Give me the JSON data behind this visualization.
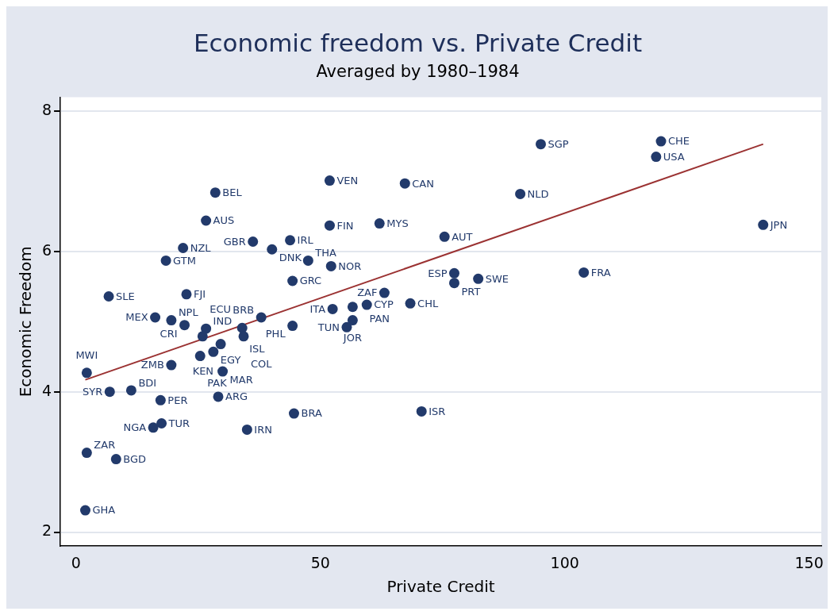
{
  "chart_data": {
    "type": "scatter",
    "title": "Economic freedom vs. Private Credit",
    "subtitle": "Averaged by 1980–1984",
    "xlabel": "Private Credit",
    "ylabel": "Economic Freedom",
    "xlim": [
      -3.2,
      152.5
    ],
    "ylim": [
      1.8,
      8.2
    ],
    "xticks": [
      0,
      50,
      100,
      150
    ],
    "yticks": [
      2,
      4,
      6,
      8
    ],
    "grid": "y",
    "legend": false,
    "marker": "circle",
    "series": [
      {
        "type": "scatter",
        "color": "#223a6b",
        "x": [
          95.1,
          119.7,
          118.7,
          140.6,
          51.9,
          67.3,
          28.5,
          90.9,
          26.6,
          51.9,
          62.1,
          75.4,
          36.2,
          43.8,
          40.1,
          21.9,
          18.4,
          47.5,
          52.2,
          44.3,
          77.4,
          77.4,
          82.3,
          103.9,
          6.7,
          22.6,
          63.1,
          68.4,
          52.5,
          56.6,
          59.5,
          56.6,
          55.4,
          44.3,
          37.9,
          16.2,
          19.5,
          22.2,
          26.6,
          25.9,
          34.0,
          34.3,
          29.6,
          28.1,
          25.4,
          19.5,
          30.0,
          2.2,
          6.9,
          11.3,
          17.3,
          29.1,
          70.7,
          44.6,
          17.5,
          15.8,
          35.0,
          2.2,
          8.2,
          1.9
        ],
        "values": [
          7.53,
          7.57,
          7.35,
          6.38,
          7.01,
          6.97,
          6.84,
          6.82,
          6.44,
          6.37,
          6.4,
          6.21,
          6.14,
          6.16,
          6.03,
          6.05,
          5.87,
          5.87,
          5.79,
          5.58,
          5.69,
          5.55,
          5.61,
          5.7,
          5.36,
          5.39,
          5.41,
          5.26,
          5.18,
          5.21,
          5.24,
          5.02,
          4.92,
          4.94,
          5.06,
          5.06,
          5.02,
          4.95,
          4.9,
          4.79,
          4.91,
          4.79,
          4.68,
          4.57,
          4.51,
          4.38,
          4.29,
          4.27,
          4.0,
          4.02,
          3.88,
          3.93,
          3.72,
          3.69,
          3.55,
          3.49,
          3.46,
          3.13,
          3.04,
          2.31
        ]
      },
      {
        "type": "line",
        "color": "#9b3232",
        "marker": "none",
        "x": [
          1.9,
          140.6
        ],
        "values": [
          4.17,
          7.53
        ]
      }
    ],
    "annotations": [
      {
        "text": "SGP",
        "x": 95.1,
        "y": 7.53
      },
      {
        "text": "CHE",
        "x": 119.7,
        "y": 7.57
      },
      {
        "text": "USA",
        "x": 118.7,
        "y": 7.35
      },
      {
        "text": "JPN",
        "x": 140.6,
        "y": 6.38
      },
      {
        "text": "VEN",
        "x": 51.9,
        "y": 7.01
      },
      {
        "text": "CAN",
        "x": 67.3,
        "y": 6.97
      },
      {
        "text": "BEL",
        "x": 28.5,
        "y": 6.84
      },
      {
        "text": "NLD",
        "x": 90.9,
        "y": 6.82
      },
      {
        "text": "AUS",
        "x": 26.6,
        "y": 6.44
      },
      {
        "text": "FIN",
        "x": 51.9,
        "y": 6.37
      },
      {
        "text": "MYS",
        "x": 62.1,
        "y": 6.4
      },
      {
        "text": "AUT",
        "x": 75.4,
        "y": 6.21
      },
      {
        "text": "GBR",
        "x": 36.2,
        "y": 6.14
      },
      {
        "text": "IRL",
        "x": 43.8,
        "y": 6.16
      },
      {
        "text": "DNK",
        "x": 40.1,
        "y": 6.03
      },
      {
        "text": "NZL",
        "x": 21.9,
        "y": 6.05
      },
      {
        "text": "GTM",
        "x": 18.4,
        "y": 5.87
      },
      {
        "text": "THA",
        "x": 47.5,
        "y": 5.87
      },
      {
        "text": "NOR",
        "x": 52.2,
        "y": 5.79
      },
      {
        "text": "GRC",
        "x": 44.3,
        "y": 5.58
      },
      {
        "text": "ESP",
        "x": 77.4,
        "y": 5.69
      },
      {
        "text": "PRT",
        "x": 77.4,
        "y": 5.55
      },
      {
        "text": "SWE",
        "x": 82.3,
        "y": 5.61
      },
      {
        "text": "FRA",
        "x": 103.9,
        "y": 5.7
      },
      {
        "text": "SLE",
        "x": 6.7,
        "y": 5.36
      },
      {
        "text": "FJI",
        "x": 22.6,
        "y": 5.39
      },
      {
        "text": "ZAF",
        "x": 63.1,
        "y": 5.41
      },
      {
        "text": "CHL",
        "x": 68.4,
        "y": 5.26
      },
      {
        "text": "ITA",
        "x": 52.5,
        "y": 5.18
      },
      {
        "text": "PAN",
        "x": 56.6,
        "y": 5.21
      },
      {
        "text": "CYP",
        "x": 59.5,
        "y": 5.24
      },
      {
        "text": "JOR",
        "x": 56.6,
        "y": 5.02
      },
      {
        "text": "TUN",
        "x": 55.4,
        "y": 4.92
      },
      {
        "text": "PHL",
        "x": 44.3,
        "y": 4.94
      },
      {
        "text": "BRB",
        "x": 37.9,
        "y": 5.06
      },
      {
        "text": "MEX",
        "x": 16.2,
        "y": 5.06
      },
      {
        "text": "NPL",
        "x": 19.5,
        "y": 5.02
      },
      {
        "text": "CRI",
        "x": 22.2,
        "y": 4.95
      },
      {
        "text": "IND",
        "x": 26.6,
        "y": 4.9
      },
      {
        "text": "ECU",
        "x": 25.9,
        "y": 4.79
      },
      {
        "text": "ISL",
        "x": 34.0,
        "y": 4.91
      },
      {
        "text": "COL",
        "x": 34.3,
        "y": 4.79
      },
      {
        "text": "KEN",
        "x": 29.6,
        "y": 4.68
      },
      {
        "text": "EGY",
        "x": 28.1,
        "y": 4.57
      },
      {
        "text": "PAK",
        "x": 25.4,
        "y": 4.51
      },
      {
        "text": "ZMB",
        "x": 19.5,
        "y": 4.38
      },
      {
        "text": "MAR",
        "x": 30.0,
        "y": 4.29
      },
      {
        "text": "MWI",
        "x": 2.2,
        "y": 4.27
      },
      {
        "text": "SYR",
        "x": 6.9,
        "y": 4.0
      },
      {
        "text": "BDI",
        "x": 11.3,
        "y": 4.02
      },
      {
        "text": "PER",
        "x": 17.3,
        "y": 3.88
      },
      {
        "text": "ARG",
        "x": 29.1,
        "y": 3.93
      },
      {
        "text": "ISR",
        "x": 70.7,
        "y": 3.72
      },
      {
        "text": "BRA",
        "x": 44.6,
        "y": 3.69
      },
      {
        "text": "TUR",
        "x": 17.5,
        "y": 3.55
      },
      {
        "text": "NGA",
        "x": 15.8,
        "y": 3.49
      },
      {
        "text": "IRN",
        "x": 35.0,
        "y": 3.46
      },
      {
        "text": "ZAR",
        "x": 2.2,
        "y": 3.13
      },
      {
        "text": "BGD",
        "x": 8.2,
        "y": 3.04
      },
      {
        "text": "GHA",
        "x": 1.9,
        "y": 2.31
      }
    ]
  }
}
